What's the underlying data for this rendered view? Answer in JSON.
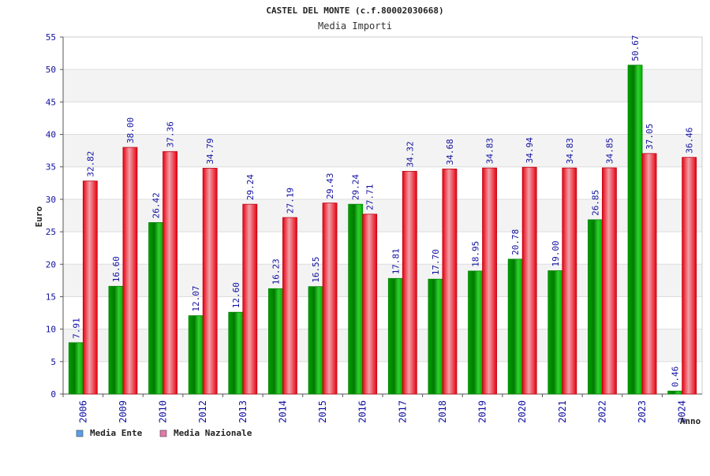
{
  "chart_data": {
    "type": "bar",
    "title": "CASTEL DEL MONTE (c.f.80002030668)",
    "subtitle": "Media Importi",
    "xlabel": "Anno",
    "ylabel": "Euro",
    "ylim": [
      0,
      55
    ],
    "yticks": [
      0,
      5,
      10,
      15,
      20,
      25,
      30,
      35,
      40,
      45,
      50,
      55
    ],
    "grid": "horizontal bands",
    "legend_position": "bottom-left",
    "categories": [
      "2006",
      "2009",
      "2010",
      "2012",
      "2013",
      "2014",
      "2015",
      "2016",
      "2017",
      "2018",
      "2019",
      "2020",
      "2021",
      "2022",
      "2023",
      "2024"
    ],
    "series": [
      {
        "name": "Media Ente",
        "color": "#00b400",
        "legend_color": "#5a9ee6",
        "values": [
          7.91,
          16.6,
          26.42,
          12.07,
          12.6,
          16.23,
          16.55,
          29.24,
          17.81,
          17.7,
          18.95,
          20.78,
          19.0,
          26.85,
          50.67,
          0.46
        ],
        "labels": [
          "7.91",
          "16.60",
          "26.42",
          "12.07",
          "12.60",
          "16.23",
          "16.55",
          "29.24",
          "17.81",
          "17.70",
          "18.95",
          "20.78",
          "19.00",
          "26.85",
          "50.67",
          "0.46"
        ]
      },
      {
        "name": "Media Nazionale",
        "color": "#e8141e",
        "legend_color": "#e07aa8",
        "values": [
          32.82,
          38.0,
          37.36,
          34.79,
          29.24,
          27.19,
          29.43,
          27.71,
          34.32,
          34.68,
          34.83,
          34.94,
          34.83,
          34.85,
          37.05,
          36.46
        ],
        "labels": [
          "32.82",
          "38.00",
          "37.36",
          "34.79",
          "29.24",
          "27.19",
          "29.43",
          "27.71",
          "34.32",
          "34.68",
          "34.83",
          "34.94",
          "34.83",
          "34.85",
          "37.05",
          "36.46"
        ]
      }
    ]
  }
}
